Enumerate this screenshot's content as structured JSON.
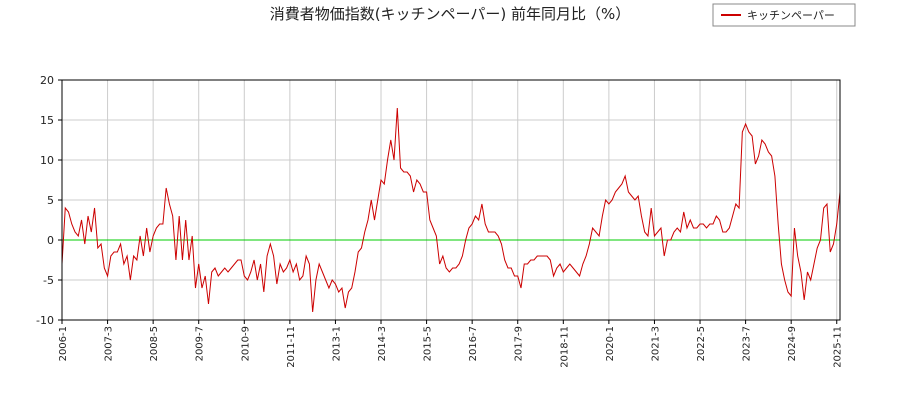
{
  "chart_data": {
    "type": "line",
    "title": "消費者物価指数(キッチンペーパー) 前年同月比（%）",
    "categories": [
      "2006-1",
      null,
      null,
      null,
      null,
      null,
      null,
      null,
      null,
      null,
      null,
      null,
      null,
      null,
      "2007-3",
      null,
      null,
      null,
      null,
      null,
      null,
      null,
      null,
      null,
      null,
      null,
      null,
      null,
      "2008-5",
      null,
      null,
      null,
      null,
      null,
      null,
      null,
      null,
      null,
      null,
      null,
      null,
      null,
      "2009-7",
      null,
      null,
      null,
      null,
      null,
      null,
      null,
      null,
      null,
      null,
      null,
      null,
      null,
      "2010-9",
      null,
      null,
      null,
      null,
      null,
      null,
      null,
      null,
      null,
      null,
      null,
      null,
      null,
      "2011-11",
      null,
      null,
      null,
      null,
      null,
      null,
      null,
      null,
      null,
      null,
      null,
      null,
      null,
      "2013-1",
      null,
      null,
      null,
      null,
      null,
      null,
      null,
      null,
      null,
      null,
      null,
      null,
      null,
      "2014-3",
      null,
      null,
      null,
      null,
      null,
      null,
      null,
      null,
      null,
      null,
      null,
      null,
      null,
      "2015-5",
      null,
      null,
      null,
      null,
      null,
      null,
      null,
      null,
      null,
      null,
      null,
      null,
      null,
      "2016-7",
      null,
      null,
      null,
      null,
      null,
      null,
      null,
      null,
      null,
      null,
      null,
      null,
      null,
      "2017-9",
      null,
      null,
      null,
      null,
      null,
      null,
      null,
      null,
      null,
      null,
      null,
      null,
      null,
      "2018-11",
      null,
      null,
      null,
      null,
      null,
      null,
      null,
      null,
      null,
      null,
      null,
      null,
      null,
      "2020-1",
      null,
      null,
      null,
      null,
      null,
      null,
      null,
      null,
      null,
      null,
      null,
      null,
      null,
      "2021-3",
      null,
      null,
      null,
      null,
      null,
      null,
      null,
      null,
      null,
      null,
      null,
      null,
      null,
      "2022-5",
      null,
      null,
      null,
      null,
      null,
      null,
      null,
      null,
      null,
      null,
      null,
      null,
      null,
      "2023-7",
      null,
      null,
      null,
      null,
      null,
      null,
      null,
      null,
      null,
      null,
      null,
      null,
      null,
      "2024-9",
      null,
      null,
      null,
      null,
      null,
      null,
      null,
      null,
      null,
      null,
      null,
      null,
      null,
      "2025-11",
      null
    ],
    "series": [
      {
        "name": "キッチンペーパー",
        "color": "#cc0000",
        "values": [
          -3,
          4,
          3.5,
          2,
          1,
          0.5,
          2.5,
          -0.5,
          3,
          1,
          4,
          -1,
          -0.5,
          -3.5,
          -4.5,
          -2,
          -1.5,
          -1.5,
          -0.5,
          -3,
          -2,
          -5,
          -2,
          -2.5,
          0.5,
          -2,
          1.5,
          -1.5,
          0.5,
          1.5,
          2,
          2,
          6.5,
          4.5,
          3,
          -2.5,
          3,
          -2.5,
          2.5,
          -2.5,
          0.5,
          -6,
          -3,
          -6,
          -4.5,
          -8,
          -4,
          -3.5,
          -4.5,
          -4,
          -3.5,
          -4,
          -3.5,
          -3,
          -2.5,
          -2.5,
          -4.5,
          -5,
          -4,
          -2.5,
          -5,
          -3,
          -6.5,
          -2,
          -0.5,
          -2,
          -5.5,
          -3,
          -4,
          -3.5,
          -2.5,
          -4,
          -3,
          -5,
          -4.5,
          -2,
          -3,
          -9,
          -5,
          -3,
          -4,
          -5,
          -6,
          -5,
          -5.5,
          -6.5,
          -6,
          -8.5,
          -6.5,
          -6,
          -4,
          -1.5,
          -1,
          1,
          2.5,
          5,
          2.5,
          5,
          7.5,
          7,
          10,
          12.5,
          10,
          16.5,
          9,
          8.5,
          8.5,
          8,
          6,
          7.5,
          7,
          6,
          6,
          2.5,
          1.5,
          0.5,
          -3,
          -2,
          -3.5,
          -4,
          -3.5,
          -3.5,
          -3,
          -2,
          0,
          1.5,
          2,
          3,
          2.5,
          4.5,
          2,
          1,
          1,
          1,
          0.5,
          -0.5,
          -2.5,
          -3.5,
          -3.5,
          -4.5,
          -4.5,
          -6,
          -3,
          -3,
          -2.5,
          -2.5,
          -2,
          -2,
          -2,
          -2,
          -2.5,
          -4.5,
          -3.5,
          -3,
          -4,
          -3.5,
          -3,
          -3.5,
          -4,
          -4.5,
          -3,
          -2,
          -0.5,
          1.5,
          1,
          0.5,
          3,
          5,
          4.5,
          5,
          6,
          6.5,
          7,
          8,
          6,
          5.5,
          5,
          5.5,
          3,
          1,
          0.5,
          4,
          0.5,
          1,
          1.5,
          -2,
          0,
          0,
          1,
          1.5,
          1,
          3.5,
          1.5,
          2.5,
          1.5,
          1.5,
          2,
          2,
          1.5,
          2,
          2,
          3,
          2.5,
          1,
          1,
          1.5,
          3,
          4.5,
          4,
          13.5,
          14.5,
          13.5,
          13,
          9.5,
          10.5,
          12.5,
          12,
          11,
          10.5,
          8,
          2,
          -3,
          -5,
          -6.5,
          -7,
          1.5,
          -2,
          -4,
          -7.5,
          -4,
          -5,
          -3,
          -1,
          0,
          4,
          4.5,
          -1.5,
          -0.5,
          2,
          6
        ]
      }
    ],
    "reference_line": {
      "value": 0,
      "color": "#00cc00"
    },
    "ylim": [
      -10,
      20
    ],
    "yticks": [
      -10,
      -5,
      0,
      5,
      10,
      15,
      20
    ],
    "grid": true,
    "legend": "top-right"
  }
}
